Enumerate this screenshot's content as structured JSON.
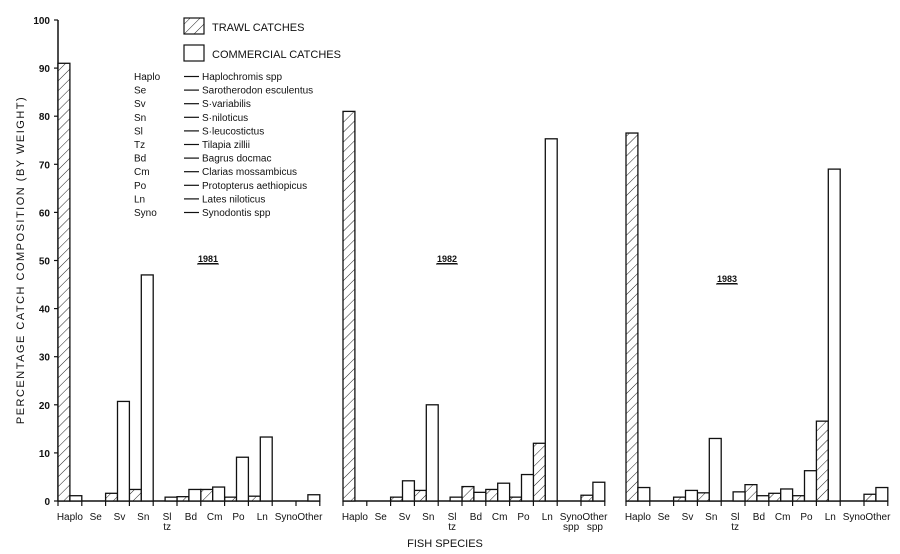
{
  "chart_data": {
    "type": "bar",
    "ylabel": "PERCENTAGE CATCH COMPOSITION (BY WEIGHT)",
    "xlabel": "FISH SPECIES",
    "ylim": [
      0,
      100
    ],
    "yticks": [
      0,
      10,
      20,
      30,
      40,
      50,
      60,
      70,
      80,
      90,
      100
    ],
    "grid": false,
    "legend": {
      "placement": "top-left",
      "entries": [
        {
          "name": "TRAWL CATCHES",
          "style": "hatched"
        },
        {
          "name": "COMMERCIAL CATCHES",
          "style": "open"
        }
      ]
    },
    "key": [
      {
        "abbr": "Haplo",
        "name": "Haplochromis spp"
      },
      {
        "abbr": "Se",
        "name": "Sarotherodon esculentus"
      },
      {
        "abbr": "Sv",
        "name": "S·variabilis"
      },
      {
        "abbr": "Sn",
        "name": "S·niloticus"
      },
      {
        "abbr": "Sl",
        "name": "S·leucostictus"
      },
      {
        "abbr": "Tz",
        "name": "Tilapia zillii"
      },
      {
        "abbr": "Bd",
        "name": "Bagrus docmac"
      },
      {
        "abbr": "Cm",
        "name": "Clarias mossambicus"
      },
      {
        "abbr": "Po",
        "name": "Protopterus aethiopicus"
      },
      {
        "abbr": "Ln",
        "name": "Lates niloticus"
      },
      {
        "abbr": "Syno",
        "name": "Synodontis spp"
      }
    ],
    "panels": [
      {
        "title": "1981",
        "categories": [
          [
            "Haplo"
          ],
          [
            "Se"
          ],
          [
            "Sv"
          ],
          [
            "Sn"
          ],
          [
            "Sl",
            "tz"
          ],
          [
            "Bd"
          ],
          [
            "Cm"
          ],
          [
            "Po"
          ],
          [
            "Ln"
          ],
          [
            "Syno"
          ],
          [
            "Other"
          ]
        ],
        "series": [
          {
            "name": "TRAWL CATCHES",
            "values": [
              91,
              0,
              1.6,
              2.4,
              0,
              0.9,
              2.4,
              0.8,
              1.0,
              0,
              0
            ]
          },
          {
            "name": "COMMERCIAL CATCHES",
            "values": [
              1.1,
              0,
              20.7,
              47,
              0.8,
              2.4,
              2.9,
              9.1,
              13.3,
              0,
              1.3
            ]
          }
        ]
      },
      {
        "title": "1982",
        "categories": [
          [
            "Haplo"
          ],
          [
            "Se"
          ],
          [
            "Sv"
          ],
          [
            "Sn"
          ],
          [
            "Sl",
            "tz"
          ],
          [
            "Bd"
          ],
          [
            "Cm"
          ],
          [
            "Po"
          ],
          [
            "Ln"
          ],
          [
            "Syno",
            "spp"
          ],
          [
            "Other",
            "spp"
          ]
        ],
        "series": [
          {
            "name": "TRAWL CATCHES",
            "values": [
              81,
              0,
              0.8,
              2.2,
              0,
              3.0,
              2.4,
              0.8,
              12,
              0,
              1.2
            ]
          },
          {
            "name": "COMMERCIAL CATCHES",
            "values": [
              0,
              0,
              4.2,
              20,
              0.8,
              1.8,
              3.7,
              5.5,
              75.3,
              0,
              3.9
            ]
          }
        ]
      },
      {
        "title": "1983",
        "categories": [
          [
            "Haplo"
          ],
          [
            "Se"
          ],
          [
            "Sv"
          ],
          [
            "Sn"
          ],
          [
            "Sl",
            "tz"
          ],
          [
            "Bd"
          ],
          [
            "Cm"
          ],
          [
            "Po"
          ],
          [
            "Ln"
          ],
          [
            "Syno"
          ],
          [
            "Other"
          ]
        ],
        "series": [
          {
            "name": "TRAWL CATCHES",
            "values": [
              76.5,
              0,
              0.8,
              1.7,
              0,
              3.4,
              1.6,
              1.1,
              16.6,
              0,
              1.4
            ]
          },
          {
            "name": "COMMERCIAL CATCHES",
            "values": [
              2.8,
              0,
              2.2,
              13,
              1.9,
              1.1,
              2.5,
              6.3,
              69,
              0,
              2.8
            ]
          }
        ]
      }
    ]
  }
}
